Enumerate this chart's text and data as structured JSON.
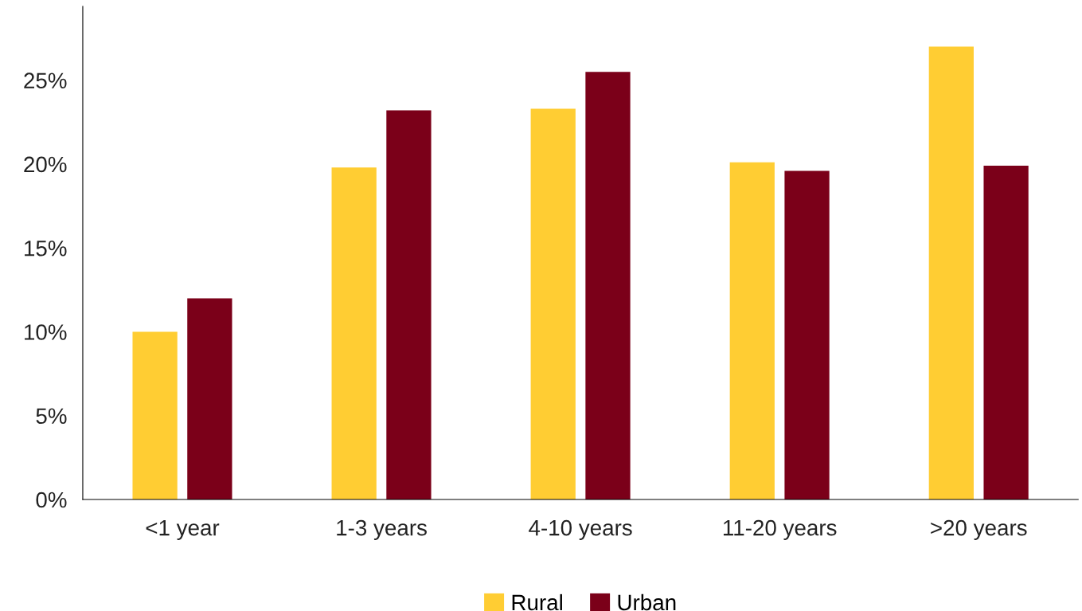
{
  "chart_data": {
    "type": "bar",
    "categories": [
      "<1 year",
      "1-3 years",
      "4-10 years",
      "11-20 years",
      ">20 years"
    ],
    "series": [
      {
        "name": "Rural",
        "color": "#ffcd33",
        "values": [
          10.0,
          19.8,
          23.3,
          20.1,
          27.0
        ]
      },
      {
        "name": "Urban",
        "color": "#7b0019",
        "values": [
          12.0,
          23.2,
          25.5,
          19.6,
          19.9
        ]
      }
    ],
    "ylim": [
      0,
      29.4
    ],
    "yticks": [
      {
        "value": 0,
        "label": "0%"
      },
      {
        "value": 5,
        "label": "5%"
      },
      {
        "value": 10,
        "label": "10%"
      },
      {
        "value": 15,
        "label": "15%"
      },
      {
        "value": 20,
        "label": "20%"
      },
      {
        "value": 25,
        "label": "25%"
      }
    ],
    "grid": false,
    "legend": "bottom"
  }
}
